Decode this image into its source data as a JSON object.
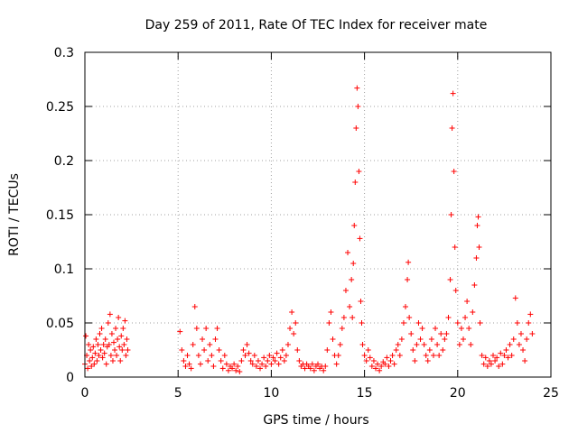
{
  "chart_data": {
    "type": "scatter",
    "title": "Day 259 of 2011, Rate Of TEC Index for receiver mate",
    "xlabel": "GPS time / hours",
    "ylabel": "ROTI / TECUs",
    "xlim": [
      0,
      25
    ],
    "ylim": [
      0,
      0.3
    ],
    "xticks": [
      0,
      5,
      10,
      15,
      20,
      25
    ],
    "xtick_labels": [
      "0",
      "5",
      "10",
      "15",
      "20",
      "25"
    ],
    "yticks": [
      0,
      0.05,
      0.1,
      0.15,
      0.2,
      0.25,
      0.3
    ],
    "ytick_labels": [
      "0",
      "0.05",
      "0.1",
      "0.15",
      "0.2",
      "0.25",
      "0.3"
    ],
    "grid": true,
    "marker": "+",
    "color": "#ff0000",
    "series": [
      {
        "name": "ROTI",
        "points": [
          [
            0.0,
            0.012
          ],
          [
            0.05,
            0.038
          ],
          [
            0.1,
            0.02
          ],
          [
            0.15,
            0.008
          ],
          [
            0.2,
            0.03
          ],
          [
            0.25,
            0.015
          ],
          [
            0.3,
            0.025
          ],
          [
            0.35,
            0.01
          ],
          [
            0.4,
            0.018
          ],
          [
            0.45,
            0.028
          ],
          [
            0.5,
            0.012
          ],
          [
            0.55,
            0.022
          ],
          [
            0.6,
            0.035
          ],
          [
            0.65,
            0.015
          ],
          [
            0.7,
            0.03
          ],
          [
            0.75,
            0.02
          ],
          [
            0.8,
            0.04
          ],
          [
            0.85,
            0.025
          ],
          [
            0.9,
            0.045
          ],
          [
            0.95,
            0.018
          ],
          [
            1.0,
            0.03
          ],
          [
            1.05,
            0.022
          ],
          [
            1.1,
            0.035
          ],
          [
            1.15,
            0.012
          ],
          [
            1.2,
            0.028
          ],
          [
            1.25,
            0.05
          ],
          [
            1.3,
            0.03
          ],
          [
            1.35,
            0.058
          ],
          [
            1.4,
            0.02
          ],
          [
            1.45,
            0.04
          ],
          [
            1.5,
            0.015
          ],
          [
            1.55,
            0.032
          ],
          [
            1.6,
            0.025
          ],
          [
            1.65,
            0.045
          ],
          [
            1.7,
            0.02
          ],
          [
            1.75,
            0.035
          ],
          [
            1.8,
            0.055
          ],
          [
            1.85,
            0.028
          ],
          [
            1.9,
            0.015
          ],
          [
            1.95,
            0.038
          ],
          [
            2.0,
            0.025
          ],
          [
            2.05,
            0.045
          ],
          [
            2.1,
            0.03
          ],
          [
            2.15,
            0.052
          ],
          [
            2.2,
            0.02
          ],
          [
            2.25,
            0.035
          ],
          [
            2.3,
            0.025
          ],
          [
            5.1,
            0.042
          ],
          [
            5.2,
            0.025
          ],
          [
            5.3,
            0.015
          ],
          [
            5.4,
            0.01
          ],
          [
            5.5,
            0.02
          ],
          [
            5.6,
            0.012
          ],
          [
            5.7,
            0.008
          ],
          [
            5.8,
            0.03
          ],
          [
            5.9,
            0.065
          ],
          [
            6.0,
            0.045
          ],
          [
            6.1,
            0.02
          ],
          [
            6.2,
            0.012
          ],
          [
            6.3,
            0.035
          ],
          [
            6.4,
            0.025
          ],
          [
            6.5,
            0.045
          ],
          [
            6.6,
            0.015
          ],
          [
            6.7,
            0.03
          ],
          [
            6.8,
            0.02
          ],
          [
            6.9,
            0.01
          ],
          [
            7.0,
            0.035
          ],
          [
            7.1,
            0.045
          ],
          [
            7.2,
            0.025
          ],
          [
            7.3,
            0.015
          ],
          [
            7.4,
            0.008
          ],
          [
            7.5,
            0.02
          ],
          [
            7.6,
            0.012
          ],
          [
            7.7,
            0.006
          ],
          [
            7.8,
            0.01
          ],
          [
            7.9,
            0.008
          ],
          [
            8.0,
            0.012
          ],
          [
            8.1,
            0.006
          ],
          [
            8.2,
            0.01
          ],
          [
            8.3,
            0.005
          ],
          [
            8.4,
            0.015
          ],
          [
            8.5,
            0.025
          ],
          [
            8.6,
            0.02
          ],
          [
            8.7,
            0.03
          ],
          [
            8.8,
            0.022
          ],
          [
            8.9,
            0.015
          ],
          [
            9.0,
            0.012
          ],
          [
            9.1,
            0.02
          ],
          [
            9.2,
            0.01
          ],
          [
            9.3,
            0.015
          ],
          [
            9.4,
            0.008
          ],
          [
            9.5,
            0.012
          ],
          [
            9.6,
            0.018
          ],
          [
            9.7,
            0.01
          ],
          [
            9.8,
            0.015
          ],
          [
            9.9,
            0.02
          ],
          [
            10.0,
            0.012
          ],
          [
            10.1,
            0.018
          ],
          [
            10.2,
            0.015
          ],
          [
            10.3,
            0.022
          ],
          [
            10.4,
            0.012
          ],
          [
            10.5,
            0.018
          ],
          [
            10.6,
            0.025
          ],
          [
            10.7,
            0.015
          ],
          [
            10.8,
            0.02
          ],
          [
            10.9,
            0.03
          ],
          [
            11.0,
            0.045
          ],
          [
            11.1,
            0.06
          ],
          [
            11.2,
            0.04
          ],
          [
            11.3,
            0.05
          ],
          [
            11.4,
            0.025
          ],
          [
            11.5,
            0.015
          ],
          [
            11.6,
            0.01
          ],
          [
            11.7,
            0.012
          ],
          [
            11.8,
            0.008
          ],
          [
            11.9,
            0.012
          ],
          [
            12.0,
            0.01
          ],
          [
            12.1,
            0.008
          ],
          [
            12.2,
            0.012
          ],
          [
            12.3,
            0.006
          ],
          [
            12.4,
            0.01
          ],
          [
            12.5,
            0.012
          ],
          [
            12.6,
            0.008
          ],
          [
            12.7,
            0.01
          ],
          [
            12.8,
            0.006
          ],
          [
            12.9,
            0.01
          ],
          [
            13.0,
            0.025
          ],
          [
            13.1,
            0.05
          ],
          [
            13.2,
            0.06
          ],
          [
            13.3,
            0.035
          ],
          [
            13.4,
            0.02
          ],
          [
            13.5,
            0.012
          ],
          [
            13.6,
            0.02
          ],
          [
            13.7,
            0.03
          ],
          [
            13.8,
            0.045
          ],
          [
            13.9,
            0.055
          ],
          [
            14.0,
            0.08
          ],
          [
            14.1,
            0.115
          ],
          [
            14.2,
            0.065
          ],
          [
            14.3,
            0.09
          ],
          [
            14.35,
            0.055
          ],
          [
            14.4,
            0.105
          ],
          [
            14.45,
            0.14
          ],
          [
            14.5,
            0.18
          ],
          [
            14.55,
            0.23
          ],
          [
            14.6,
            0.267
          ],
          [
            14.65,
            0.25
          ],
          [
            14.7,
            0.19
          ],
          [
            14.75,
            0.128
          ],
          [
            14.8,
            0.07
          ],
          [
            14.85,
            0.05
          ],
          [
            14.9,
            0.03
          ],
          [
            15.0,
            0.02
          ],
          [
            15.1,
            0.015
          ],
          [
            15.2,
            0.025
          ],
          [
            15.3,
            0.018
          ],
          [
            15.4,
            0.01
          ],
          [
            15.5,
            0.015
          ],
          [
            15.6,
            0.008
          ],
          [
            15.7,
            0.012
          ],
          [
            15.8,
            0.006
          ],
          [
            15.9,
            0.01
          ],
          [
            16.0,
            0.014
          ],
          [
            16.1,
            0.012
          ],
          [
            16.2,
            0.018
          ],
          [
            16.3,
            0.01
          ],
          [
            16.4,
            0.015
          ],
          [
            16.5,
            0.02
          ],
          [
            16.6,
            0.012
          ],
          [
            16.7,
            0.025
          ],
          [
            16.8,
            0.03
          ],
          [
            16.9,
            0.02
          ],
          [
            17.0,
            0.035
          ],
          [
            17.1,
            0.05
          ],
          [
            17.2,
            0.065
          ],
          [
            17.3,
            0.09
          ],
          [
            17.35,
            0.106
          ],
          [
            17.4,
            0.055
          ],
          [
            17.5,
            0.04
          ],
          [
            17.6,
            0.025
          ],
          [
            17.7,
            0.015
          ],
          [
            17.8,
            0.03
          ],
          [
            17.9,
            0.05
          ],
          [
            18.0,
            0.035
          ],
          [
            18.1,
            0.045
          ],
          [
            18.2,
            0.03
          ],
          [
            18.3,
            0.02
          ],
          [
            18.4,
            0.015
          ],
          [
            18.5,
            0.025
          ],
          [
            18.6,
            0.035
          ],
          [
            18.7,
            0.02
          ],
          [
            18.8,
            0.045
          ],
          [
            18.9,
            0.03
          ],
          [
            19.0,
            0.02
          ],
          [
            19.1,
            0.04
          ],
          [
            19.2,
            0.025
          ],
          [
            19.3,
            0.035
          ],
          [
            19.4,
            0.04
          ],
          [
            19.5,
            0.055
          ],
          [
            19.6,
            0.09
          ],
          [
            19.65,
            0.15
          ],
          [
            19.7,
            0.23
          ],
          [
            19.75,
            0.262
          ],
          [
            19.8,
            0.19
          ],
          [
            19.85,
            0.12
          ],
          [
            19.9,
            0.08
          ],
          [
            20.0,
            0.05
          ],
          [
            20.1,
            0.03
          ],
          [
            20.2,
            0.045
          ],
          [
            20.3,
            0.035
          ],
          [
            20.4,
            0.055
          ],
          [
            20.5,
            0.07
          ],
          [
            20.6,
            0.045
          ],
          [
            20.7,
            0.03
          ],
          [
            20.8,
            0.06
          ],
          [
            20.9,
            0.085
          ],
          [
            21.0,
            0.11
          ],
          [
            21.05,
            0.14
          ],
          [
            21.1,
            0.148
          ],
          [
            21.15,
            0.12
          ],
          [
            21.2,
            0.05
          ],
          [
            21.3,
            0.02
          ],
          [
            21.4,
            0.012
          ],
          [
            21.5,
            0.018
          ],
          [
            21.6,
            0.01
          ],
          [
            21.7,
            0.015
          ],
          [
            21.8,
            0.012
          ],
          [
            21.9,
            0.02
          ],
          [
            22.0,
            0.015
          ],
          [
            22.1,
            0.018
          ],
          [
            22.2,
            0.01
          ],
          [
            22.3,
            0.022
          ],
          [
            22.4,
            0.012
          ],
          [
            22.5,
            0.02
          ],
          [
            22.6,
            0.025
          ],
          [
            22.7,
            0.018
          ],
          [
            22.8,
            0.03
          ],
          [
            22.9,
            0.02
          ],
          [
            23.0,
            0.035
          ],
          [
            23.1,
            0.073
          ],
          [
            23.2,
            0.05
          ],
          [
            23.3,
            0.03
          ],
          [
            23.4,
            0.04
          ],
          [
            23.5,
            0.025
          ],
          [
            23.6,
            0.015
          ],
          [
            23.7,
            0.035
          ],
          [
            23.8,
            0.05
          ],
          [
            23.9,
            0.058
          ],
          [
            24.0,
            0.04
          ]
        ]
      }
    ]
  }
}
